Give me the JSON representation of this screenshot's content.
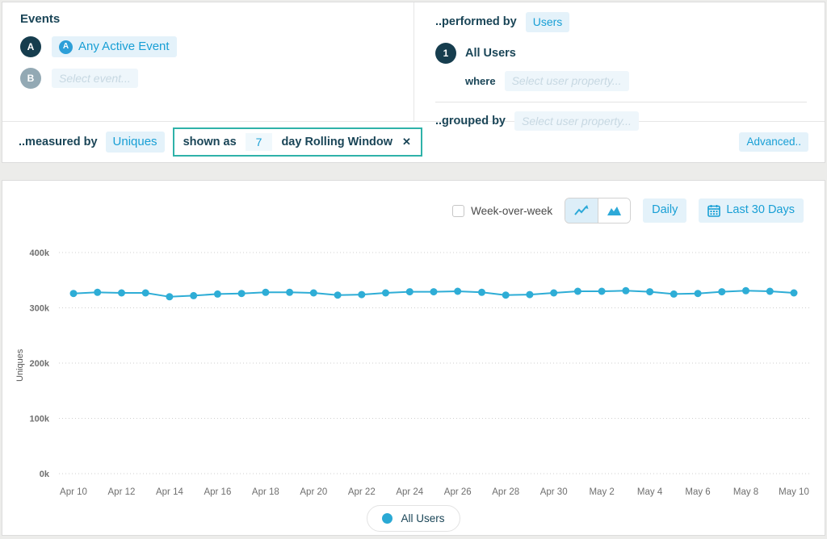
{
  "colors": {
    "navy": "#1a4557",
    "accent_blue": "#189fd5",
    "pill_bg": "#e4f2fa",
    "placeholder_bg": "#eef6fb",
    "placeholder_text": "#c7d8e2",
    "teal_border": "#2fb2a9",
    "chart_line": "#2eadd6",
    "grid": "#cfcfcf",
    "axis_text": "#6f6f6f",
    "page_bg": "#ececea"
  },
  "icons": {
    "close": "✕"
  },
  "query_builder": {
    "events": {
      "title": "Events",
      "rows": [
        {
          "badge": "A",
          "label": "Any Active Event",
          "icon_glyph": "A"
        },
        {
          "badge": "B",
          "placeholder": "Select event..."
        }
      ]
    },
    "performed_by": {
      "label": "..performed by",
      "value": "Users",
      "row_badge": "1",
      "row_label": "All Users",
      "where_label": "where",
      "where_placeholder": "Select user property...",
      "grouped_by_label": "..grouped by",
      "grouped_by_placeholder": "Select user property..."
    },
    "measured_by": {
      "label": "..measured by",
      "value": "Uniques",
      "shown_as_label": "shown as",
      "window_value": "7",
      "window_label": "day Rolling Window",
      "advanced_label": "Advanced.."
    }
  },
  "chart_controls": {
    "week_over_week_label": "Week-over-week",
    "week_over_week_checked": false,
    "chart_type_selected": "line",
    "daily_label": "Daily",
    "range_label": "Last 30 Days"
  },
  "legend": {
    "label": "All Users"
  },
  "chart_data": {
    "type": "line",
    "title": "",
    "xlabel": "",
    "ylabel": "Uniques",
    "ylim": [
      0,
      400000
    ],
    "yticks": [
      "0k",
      "100k",
      "200k",
      "300k",
      "400k"
    ],
    "grid": "dotted-horizontal",
    "legend_position": "bottom",
    "x_tick_step": 2,
    "x": [
      "Apr 10",
      "Apr 11",
      "Apr 12",
      "Apr 13",
      "Apr 14",
      "Apr 15",
      "Apr 16",
      "Apr 17",
      "Apr 18",
      "Apr 19",
      "Apr 20",
      "Apr 21",
      "Apr 22",
      "Apr 23",
      "Apr 24",
      "Apr 25",
      "Apr 26",
      "Apr 27",
      "Apr 28",
      "Apr 29",
      "Apr 30",
      "May 1",
      "May 2",
      "May 3",
      "May 4",
      "May 5",
      "May 6",
      "May 7",
      "May 8",
      "May 9",
      "May 10"
    ],
    "series": [
      {
        "name": "All Users",
        "values": [
          326000,
          328000,
          327000,
          327000,
          320000,
          322000,
          325000,
          326000,
          328000,
          328000,
          327000,
          323000,
          324000,
          327000,
          329000,
          329000,
          330000,
          328000,
          323000,
          324000,
          327000,
          330000,
          330000,
          331000,
          329000,
          325000,
          326000,
          329000,
          331000,
          330000,
          327000
        ]
      }
    ]
  }
}
